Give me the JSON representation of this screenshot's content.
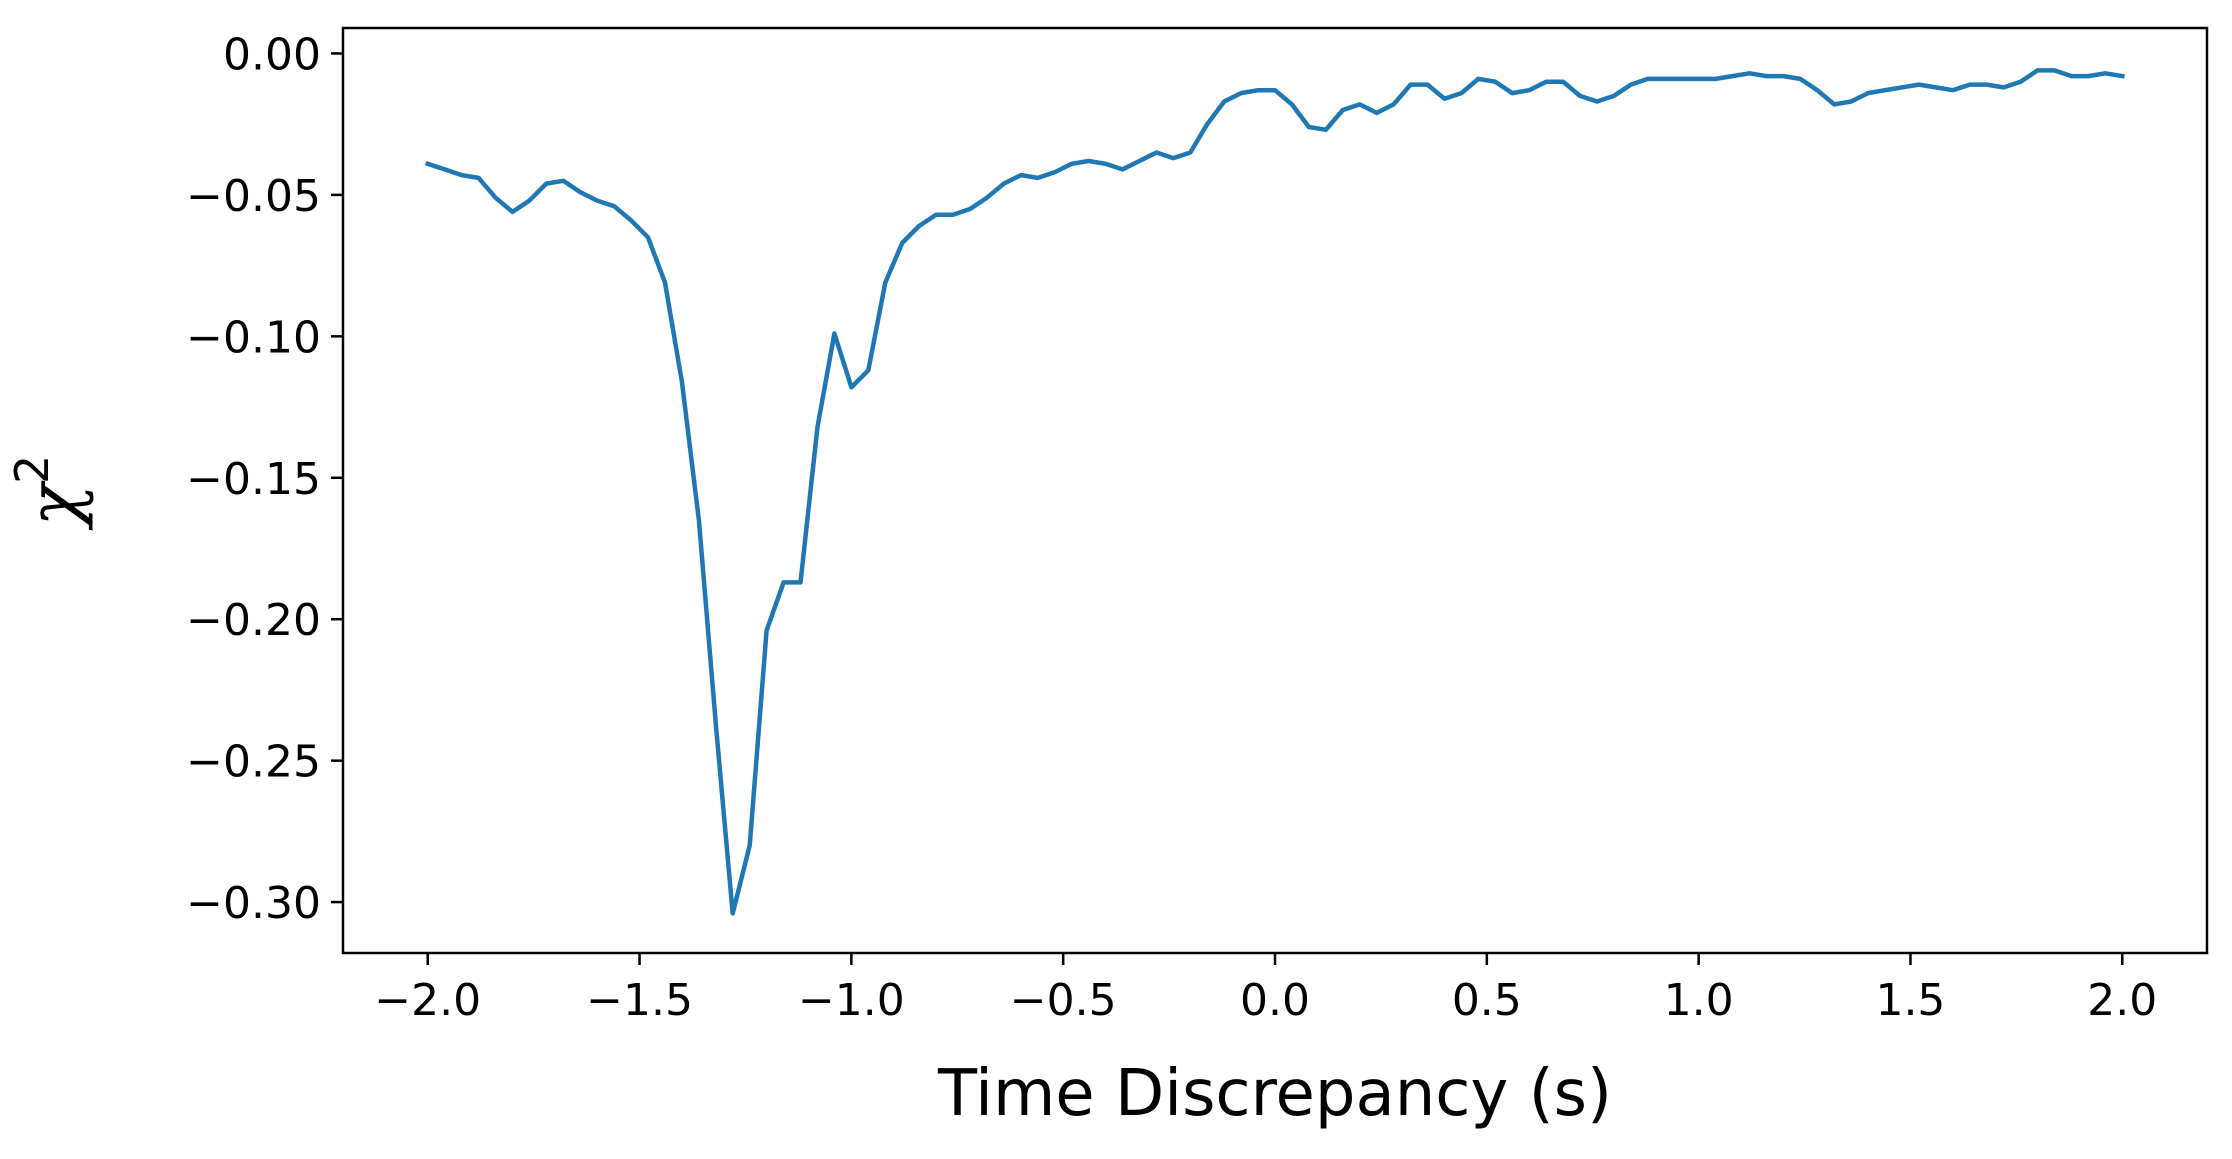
{
  "chart_data": {
    "type": "line",
    "title": "",
    "xlabel": "Time Discrepancy (s)",
    "ylabel": "χ",
    "ylabel_superscript": "2",
    "xlim": [
      -2.2,
      2.2
    ],
    "ylim": [
      -0.318,
      0.009
    ],
    "xticks": [
      -2.0,
      -1.5,
      -1.0,
      -0.5,
      0.0,
      0.5,
      1.0,
      1.5,
      2.0
    ],
    "xtick_labels": [
      "−2.0",
      "−1.5",
      "−1.0",
      "−0.5",
      "0.0",
      "0.5",
      "1.0",
      "1.5",
      "2.0"
    ],
    "yticks": [
      0.0,
      -0.05,
      -0.1,
      -0.15,
      -0.2,
      -0.25,
      -0.3
    ],
    "ytick_labels": [
      "0.00",
      "−0.05",
      "−0.10",
      "−0.15",
      "−0.20",
      "−0.25",
      "−0.30"
    ],
    "grid": false,
    "line_color": "#1f77b4",
    "series": [
      {
        "x": [
          -2.0,
          -1.96,
          -1.92,
          -1.88,
          -1.84,
          -1.8,
          -1.76,
          -1.72,
          -1.68,
          -1.64,
          -1.6,
          -1.56,
          -1.52,
          -1.48,
          -1.44,
          -1.4,
          -1.36,
          -1.32,
          -1.28,
          -1.24,
          -1.2,
          -1.16,
          -1.12,
          -1.08,
          -1.04,
          -1.0,
          -0.96,
          -0.92,
          -0.88,
          -0.84,
          -0.8,
          -0.76,
          -0.72,
          -0.68,
          -0.64,
          -0.6,
          -0.56,
          -0.52,
          -0.48,
          -0.44,
          -0.4,
          -0.36,
          -0.32,
          -0.28,
          -0.24,
          -0.2,
          -0.16,
          -0.12,
          -0.08,
          -0.04,
          0.0,
          0.04,
          0.08,
          0.12,
          0.16,
          0.2,
          0.24,
          0.28,
          0.32,
          0.36,
          0.4,
          0.44,
          0.48,
          0.52,
          0.56,
          0.6,
          0.64,
          0.68,
          0.72,
          0.76,
          0.8,
          0.84,
          0.88,
          0.92,
          0.96,
          1.0,
          1.04,
          1.08,
          1.12,
          1.16,
          1.2,
          1.24,
          1.28,
          1.32,
          1.36,
          1.4,
          1.44,
          1.48,
          1.52,
          1.56,
          1.6,
          1.64,
          1.68,
          1.72,
          1.76,
          1.8,
          1.84,
          1.88,
          1.92,
          1.96,
          2.0
        ],
        "y": [
          -0.039,
          -0.041,
          -0.043,
          -0.044,
          -0.051,
          -0.056,
          -0.052,
          -0.046,
          -0.045,
          -0.049,
          -0.052,
          -0.054,
          -0.059,
          -0.065,
          -0.081,
          -0.116,
          -0.165,
          -0.237,
          -0.304,
          -0.28,
          -0.204,
          -0.187,
          -0.187,
          -0.132,
          -0.099,
          -0.118,
          -0.112,
          -0.081,
          -0.067,
          -0.061,
          -0.057,
          -0.057,
          -0.055,
          -0.051,
          -0.046,
          -0.043,
          -0.044,
          -0.042,
          -0.039,
          -0.038,
          -0.039,
          -0.041,
          -0.038,
          -0.035,
          -0.037,
          -0.035,
          -0.025,
          -0.017,
          -0.014,
          -0.013,
          -0.013,
          -0.018,
          -0.026,
          -0.027,
          -0.02,
          -0.018,
          -0.021,
          -0.018,
          -0.011,
          -0.011,
          -0.016,
          -0.014,
          -0.009,
          -0.01,
          -0.014,
          -0.013,
          -0.01,
          -0.01,
          -0.015,
          -0.017,
          -0.015,
          -0.011,
          -0.009,
          -0.009,
          -0.009,
          -0.009,
          -0.009,
          -0.008,
          -0.007,
          -0.008,
          -0.008,
          -0.009,
          -0.013,
          -0.018,
          -0.017,
          -0.014,
          -0.013,
          -0.012,
          -0.011,
          -0.012,
          -0.013,
          -0.011,
          -0.011,
          -0.012,
          -0.01,
          -0.006,
          -0.006,
          -0.008,
          -0.008,
          -0.007,
          -0.008
        ]
      }
    ]
  }
}
